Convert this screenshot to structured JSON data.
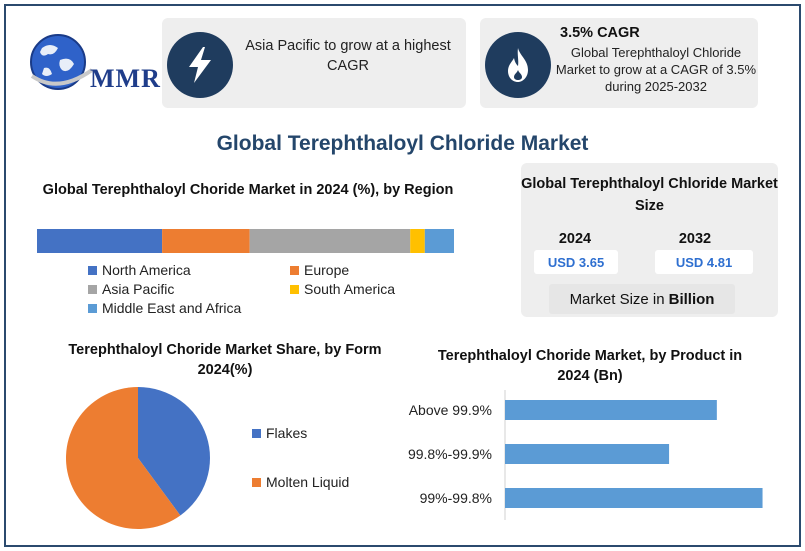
{
  "brand": {
    "logo_text": "MMR"
  },
  "highlight_cards": [
    {
      "icon": "lightning-icon",
      "text": "Asia Pacific to grow at a highest CAGR"
    },
    {
      "icon": "flame-icon",
      "heading": "3.5% CAGR",
      "text": "Global Terephthaloyl Chloride Market to grow at a CAGR of 3.5% during 2025-2032"
    }
  ],
  "main_title": "Global Terephthaloyl Chloride Market",
  "market_size": {
    "title": "Global Terephthaloyl Chloride Market Size",
    "years": [
      {
        "year": "2024",
        "value": "USD 3.65"
      },
      {
        "year": "2032",
        "value": "USD 4.81"
      }
    ],
    "unit_prefix": "Market Size in",
    "unit_bold": "Billion"
  },
  "colors": {
    "north_america": "#4472c4",
    "europe": "#ed7d31",
    "asia_pacific": "#a5a5a5",
    "south_america": "#ffc000",
    "mea": "#5b9bd5",
    "product_bar": "#5b9bd5",
    "badge": "#1f3c5e",
    "title": "#24466b"
  },
  "chart_data": [
    {
      "type": "bar",
      "stacked": true,
      "orientation": "horizontal",
      "title": "Global Terephthaloyl Choride Market in 2024 (%), by Region",
      "series": [
        {
          "name": "North America",
          "values": [
            30
          ]
        },
        {
          "name": "Europe",
          "values": [
            21
          ]
        },
        {
          "name": "Asia Pacific",
          "values": [
            38.5
          ]
        },
        {
          "name": "South America",
          "values": [
            3.5
          ]
        },
        {
          "name": "Middle East and Africa",
          "values": [
            7
          ]
        }
      ],
      "legend": "bottom"
    },
    {
      "type": "pie",
      "title": "Terephthaloyl Choride Market Share, by Form 2024(%)",
      "categories": [
        "Flakes",
        "Molten Liquid"
      ],
      "values": [
        40,
        60
      ],
      "legend": "right"
    },
    {
      "type": "bar",
      "orientation": "horizontal",
      "title": "Terephthaloyl Choride Market, by Product in 2024 (Bn)",
      "categories": [
        "Above 99.9%",
        "99.8%-99.9%",
        "99%-99.8%"
      ],
      "values": [
        1.02,
        0.79,
        1.24
      ],
      "xlim": [
        0,
        1.3
      ]
    }
  ]
}
